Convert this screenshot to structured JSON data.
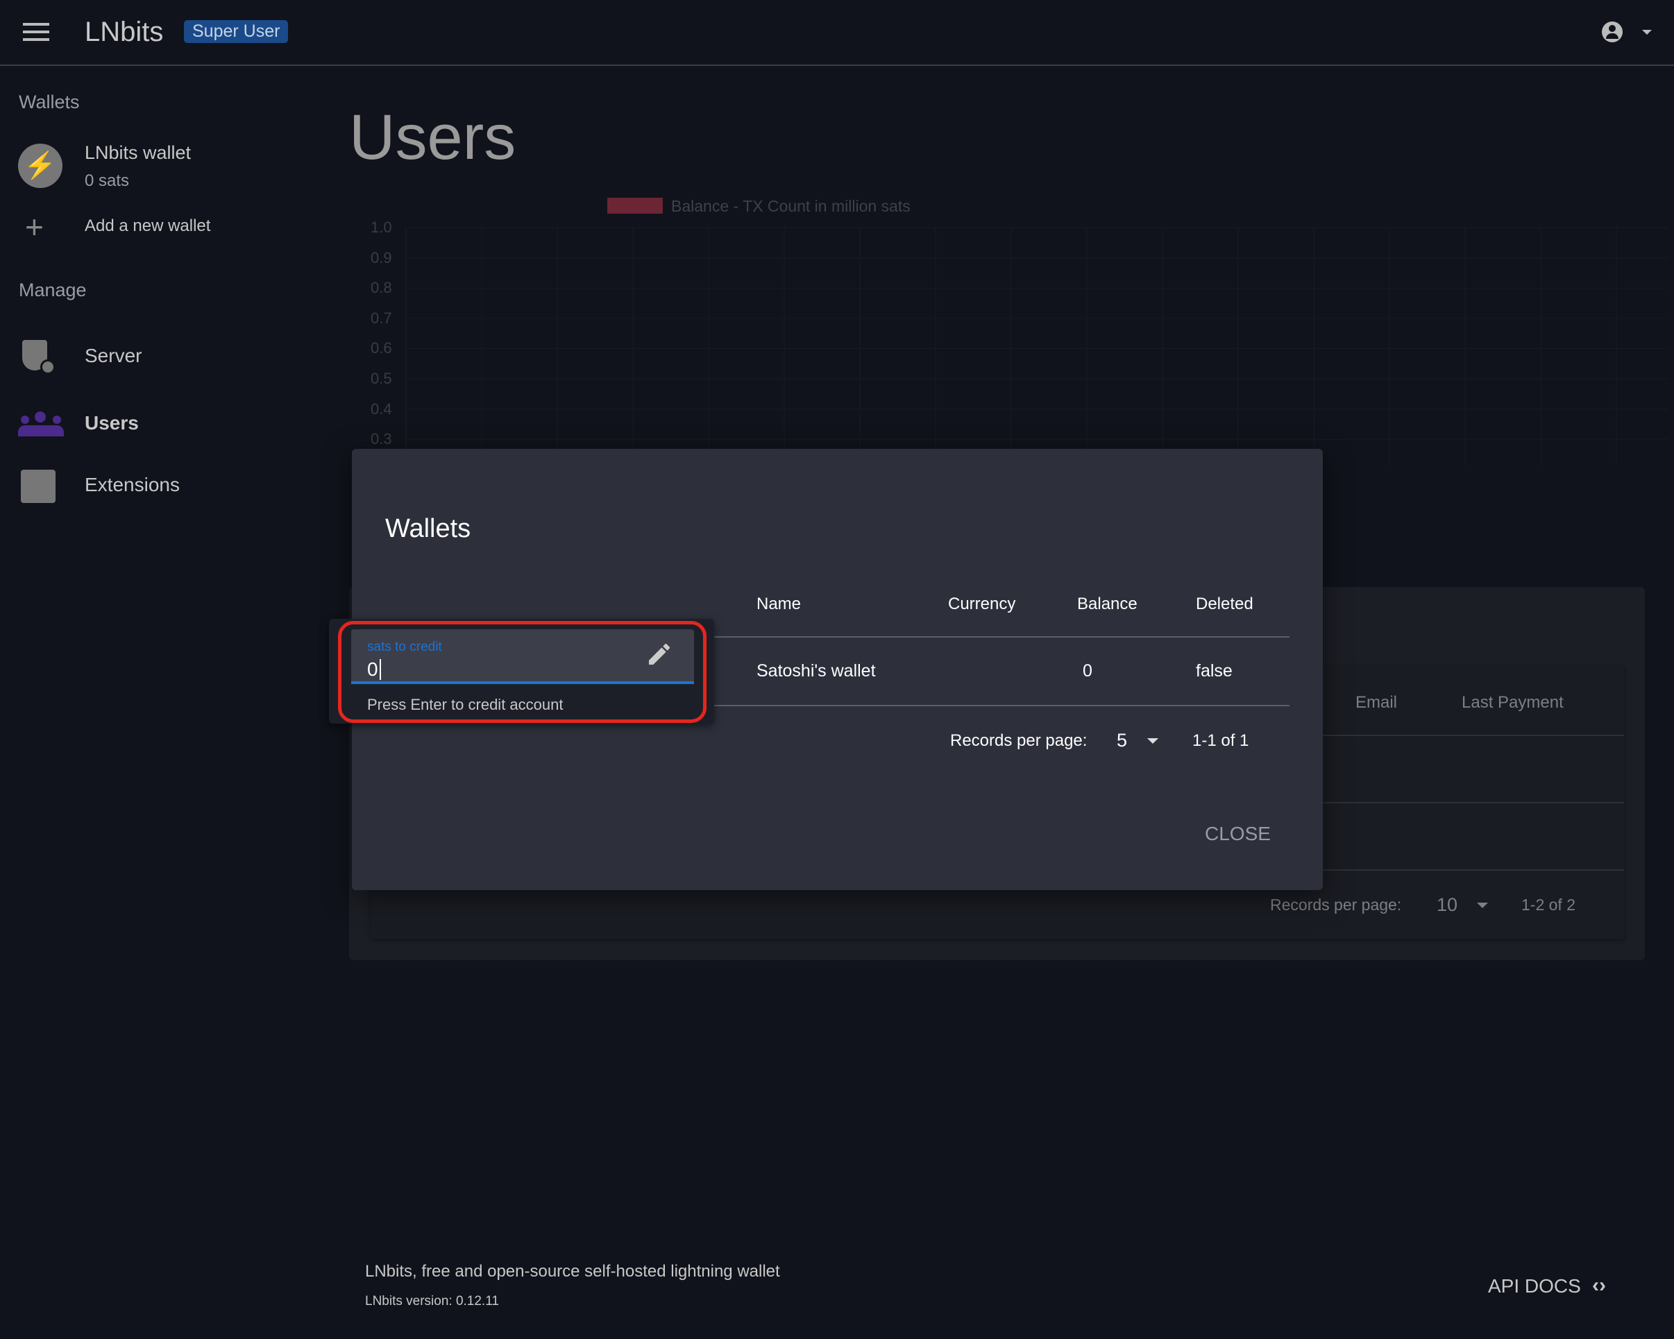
{
  "header": {
    "app_title": "LNbits",
    "badge": "Super User",
    "icons": [
      "menu-icon",
      "account-circle-icon",
      "caret-down-icon"
    ]
  },
  "sidebar": {
    "wallets_label": "Wallets",
    "wallet": {
      "name": "LNbits wallet",
      "balance": "0 sats",
      "icon": "bolt-icon"
    },
    "add_wallet": "Add a new wallet",
    "manage_label": "Manage",
    "items": [
      {
        "label": "Server",
        "icon": "admin-shield-icon",
        "active": false
      },
      {
        "label": "Users",
        "icon": "group-icon",
        "active": true
      },
      {
        "label": "Extensions",
        "icon": "puzzle-icon",
        "active": false
      }
    ],
    "active_color": "#4b2a8c"
  },
  "main": {
    "page_title": "Users"
  },
  "chart_data": {
    "type": "bar",
    "title": "",
    "legend": "Balance - TX Count in million sats",
    "legend_placement": "top",
    "series": [
      {
        "name": "Balance - TX Count in million sats",
        "values": [],
        "color": "#b03a4f"
      }
    ],
    "y_ticks": [
      "1.0",
      "0.9",
      "0.8",
      "0.7",
      "0.6",
      "0.5",
      "0.4",
      "0.3"
    ],
    "ylim": [
      0,
      1
    ],
    "grid": true
  },
  "users_table": {
    "headers": [
      "Email",
      "Last Payment"
    ],
    "records_label": "Records per page:",
    "records_per_page": "10",
    "range": "1-2 of 2"
  },
  "dialog": {
    "title": "Wallets",
    "headers": [
      "Name",
      "Currency",
      "Balance",
      "Deleted"
    ],
    "rows": [
      {
        "name": "Satoshi's wallet",
        "currency": "",
        "balance": "0",
        "deleted": "false"
      }
    ],
    "records_label": "Records per page:",
    "records_per_page": "5",
    "range": "1-1 of 1",
    "close_label": "CLOSE"
  },
  "credit_popup": {
    "label": "sats to credit",
    "value": "0",
    "hint": "Press Enter to credit account",
    "accent": "#1976d2",
    "highlight": "#e5261f"
  },
  "footer": {
    "tagline": "LNbits, free and open-source self-hosted lightning wallet",
    "version": "LNbits version: 0.12.11",
    "api_docs": "API DOCS"
  }
}
